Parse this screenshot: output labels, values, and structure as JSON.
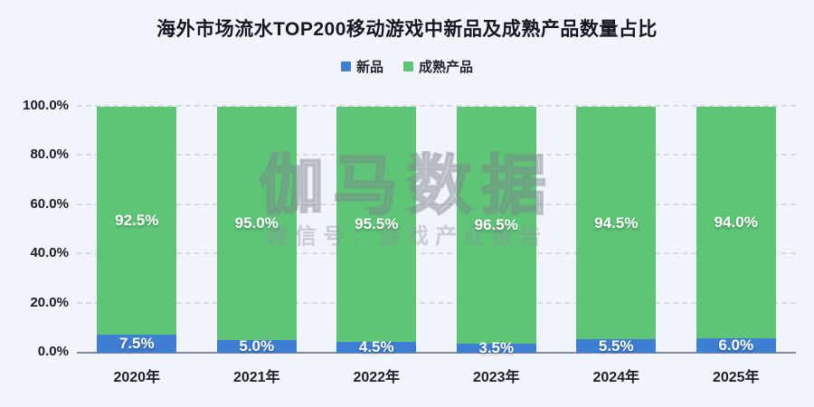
{
  "title": "海外市场流水TOP200移动游戏中新品及成熟产品数量占比",
  "legend": [
    {
      "label": "新品",
      "color": "#3e7ed3"
    },
    {
      "label": "成熟产品",
      "color": "#5ec576"
    }
  ],
  "watermark": {
    "line1": "伽马数据",
    "line2": "微信号：游戏产业报告"
  },
  "colors": {
    "background": "#f1f4fb",
    "new_product": "#3e7ed3",
    "mature_product": "#5ec576",
    "gridline": "#d6dae3",
    "axis": "#7e8a9e",
    "text": "#1b1f26"
  },
  "chart_data": {
    "type": "bar",
    "stacked": true,
    "title": "海外市场流水TOP200移动游戏中新品及成熟产品数量占比",
    "categories": [
      "2020年",
      "2021年",
      "2022年",
      "2023年",
      "2024年",
      "2025年"
    ],
    "series": [
      {
        "name": "新品",
        "color": "#3e7ed3",
        "values": [
          7.5,
          5.0,
          4.5,
          3.5,
          5.5,
          6.0
        ]
      },
      {
        "name": "成熟产品",
        "color": "#5ec576",
        "values": [
          92.5,
          95.0,
          95.5,
          96.5,
          94.5,
          94.0
        ]
      }
    ],
    "value_suffix": "%",
    "y_ticks": [
      "0.0%",
      "20.0%",
      "40.0%",
      "60.0%",
      "80.0%",
      "100.0%"
    ],
    "y_tick_values": [
      0,
      20,
      40,
      60,
      80,
      100
    ],
    "ylim": [
      0,
      100
    ],
    "grid": "dashed-horizontal",
    "legend_position": "top",
    "xlabel": "",
    "ylabel": ""
  }
}
